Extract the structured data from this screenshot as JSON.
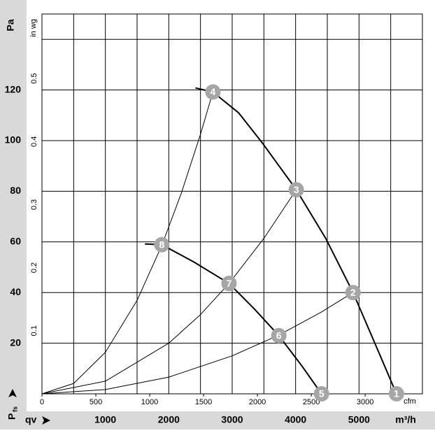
{
  "chart_data": {
    "type": "line",
    "y_label": "Pa",
    "y2_label": "in wg",
    "pressure_symbol": "P",
    "pressure_sub": "fs",
    "x_label": "qv",
    "x_unit": "m³/h",
    "x2_unit": "cfm",
    "xlim": [
      0,
      6000
    ],
    "xticks": [
      1000,
      2000,
      3000,
      4000,
      5000
    ],
    "xgrid": [
      500,
      1000,
      1500,
      2000,
      2500,
      3000,
      3500,
      4000,
      4500,
      5000,
      5500
    ],
    "x2lim": [
      0,
      3531.5
    ],
    "x2ticks": [
      0,
      500,
      1000,
      1500,
      2000,
      2500,
      3000
    ],
    "ylim": [
      0,
      150
    ],
    "yticks": [
      20,
      40,
      60,
      80,
      100,
      120
    ],
    "ygrid": [
      20,
      40,
      60,
      80,
      100,
      120,
      140
    ],
    "y2lim": [
      0,
      0.6022
    ],
    "y2ticks": [
      0.1,
      0.2,
      0.3,
      0.4,
      0.5
    ],
    "series": [
      {
        "color": "#000000",
        "width": 2,
        "x": [
          2420,
          2696,
          3100,
          3481,
          4011,
          4475,
          4906,
          5250,
          5591
        ],
        "values": [
          120.8,
          119.2,
          111,
          98.9,
          80.6,
          61.4,
          40,
          20,
          0
        ]
      },
      {
        "color": "#000000",
        "width": 2,
        "x": [
          1624,
          1890,
          2400,
          2950,
          3350,
          3735,
          4100,
          4409
        ],
        "values": [
          59.2,
          58.9,
          52,
          43.6,
          33.5,
          23,
          11,
          0
        ]
      },
      {
        "color": "#000000",
        "width": 1,
        "x": [
          0,
          500,
          1000,
          1500,
          1890,
          2200,
          2500,
          2696
        ],
        "values": [
          0,
          4.1,
          16.4,
          36.9,
          58.6,
          79.4,
          102.5,
          119.2
        ]
      },
      {
        "color": "#000000",
        "width": 1,
        "x": [
          0,
          1000,
          2000,
          2500,
          2950,
          3500,
          4011
        ],
        "values": [
          0,
          5.0,
          20.0,
          31.3,
          43.6,
          61.4,
          80.6
        ]
      },
      {
        "color": "#000000",
        "width": 1,
        "x": [
          0,
          1000,
          2000,
          3000,
          3735,
          4400,
          4906
        ],
        "values": [
          0,
          1.7,
          6.6,
          15,
          23.2,
          32.2,
          40
        ]
      }
    ],
    "points": [
      {
        "label": "1",
        "x": 5591,
        "y": 0
      },
      {
        "label": "2",
        "x": 4906,
        "y": 40
      },
      {
        "label": "3",
        "x": 4011,
        "y": 80.6
      },
      {
        "label": "4",
        "x": 2696,
        "y": 119.2
      },
      {
        "label": "5",
        "x": 4409,
        "y": 0
      },
      {
        "label": "6",
        "x": 3735,
        "y": 23
      },
      {
        "label": "7",
        "x": 2950,
        "y": 43.6
      },
      {
        "label": "8",
        "x": 1890,
        "y": 58.9
      }
    ],
    "point_color": "#a6a6a6"
  }
}
